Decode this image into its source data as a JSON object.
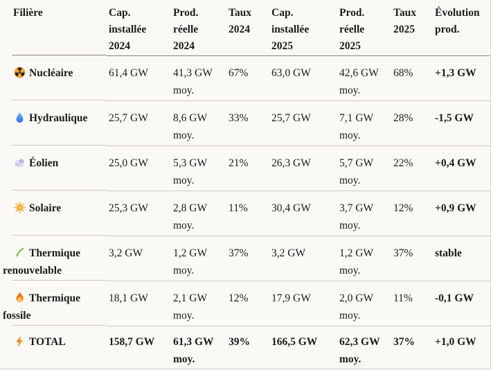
{
  "theme": {
    "background": "#faf9f5",
    "text": "#1c1b18",
    "header_rule": "#8a8479",
    "row_rule": "#ccc9c0"
  },
  "chart_data": {
    "type": "table",
    "columns": [
      "Filière",
      "Cap.\ninstallée\n2024",
      "Prod.\nréelle\n2024",
      "Taux\n2024",
      "Cap.\ninstallée\n2025",
      "Prod.\nréelle\n2025",
      "Taux\n2025",
      "Évolution\nprod."
    ],
    "rows": [
      {
        "icon": "radioactive-icon",
        "label": "Nucléaire",
        "total": false,
        "cells": [
          "61,4 GW",
          "41,3 GW\nmoy.",
          "67%",
          "63,0 GW",
          "42,6 GW\nmoy.",
          "68%",
          "+1,3 GW"
        ]
      },
      {
        "icon": "droplet-icon",
        "label": "Hydraulique",
        "total": false,
        "cells": [
          "25,7 GW",
          "8,6 GW\nmoy.",
          "33%",
          "25,7 GW",
          "7,1 GW\nmoy.",
          "28%",
          "-1,5 GW"
        ]
      },
      {
        "icon": "wind-icon",
        "label": "Éolien",
        "total": false,
        "cells": [
          "25,0 GW",
          "5,3 GW\nmoy.",
          "21%",
          "26,3 GW",
          "5,7 GW\nmoy.",
          "22%",
          "+0,4 GW"
        ]
      },
      {
        "icon": "sun-icon",
        "label": "Solaire",
        "total": false,
        "cells": [
          "25,3 GW",
          "2,8 GW\nmoy.",
          "11%",
          "30,4 GW",
          "3,7 GW\nmoy.",
          "12%",
          "+0,9 GW"
        ]
      },
      {
        "icon": "herb-icon",
        "label": "Thermique\nrenouvelable",
        "total": false,
        "cells": [
          "3,2 GW",
          "1,2 GW\nmoy.",
          "37%",
          "3,2 GW",
          "1,2 GW\nmoy.",
          "37%",
          "stable"
        ]
      },
      {
        "icon": "fire-icon",
        "label": "Thermique\nfossile",
        "total": false,
        "cells": [
          "18,1 GW",
          "2,1 GW\nmoy.",
          "12%",
          "17,9 GW",
          "2,0 GW\nmoy.",
          "11%",
          "-0,1 GW"
        ]
      },
      {
        "icon": "lightning-icon",
        "label": "TOTAL",
        "total": true,
        "cells": [
          "158,7 GW",
          "61,3 GW\nmoy.",
          "39%",
          "166,5 GW",
          "62,3 GW\nmoy.",
          "37%",
          "+1,0 GW"
        ]
      }
    ]
  }
}
